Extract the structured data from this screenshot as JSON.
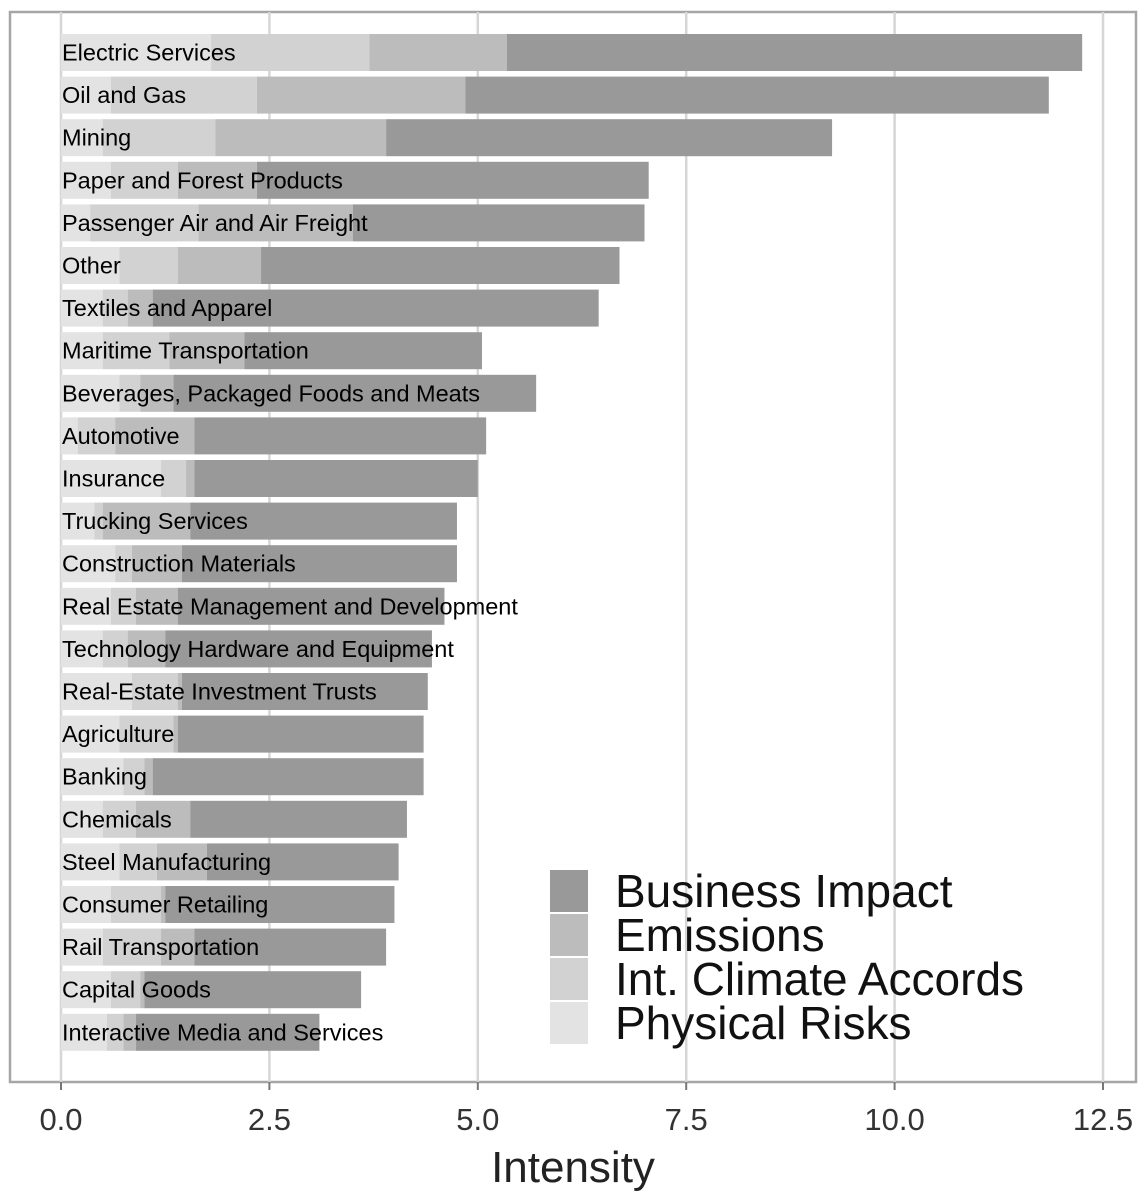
{
  "chart_data": {
    "type": "bar",
    "orientation": "horizontal",
    "stacked": true,
    "xlabel": "Intensity",
    "xlim": [
      0,
      12.5
    ],
    "xticks": [
      0,
      2.5,
      5,
      7.5,
      10,
      12.5
    ],
    "xtick_labels": [
      "0.0",
      "2.5",
      "5.0",
      "7.5",
      "10.0",
      "12.5"
    ],
    "grid": "vertical",
    "legend_position": "bottom-right",
    "categories": [
      "Electric Services",
      "Oil and Gas",
      "Mining",
      "Paper and Forest Products",
      "Passenger Air and Air Freight",
      "Other",
      "Textiles and Apparel",
      "Maritime Transportation",
      "Beverages, Packaged Foods and Meats",
      "Automotive",
      "Insurance",
      "Trucking Services",
      "Construction Materials",
      "Real Estate Management and Development",
      "Technology Hardware and Equipment",
      "Real-Estate Investment Trusts",
      "Agriculture",
      "Banking",
      "Chemicals",
      "Steel Manufacturing",
      "Consumer Retailing",
      "Rail Transportation",
      "Capital Goods",
      "Interactive Media and Services"
    ],
    "series": [
      {
        "name": "Physical Risks",
        "color": "#e3e3e3",
        "values": [
          1.8,
          0.6,
          0.5,
          0.6,
          0.35,
          0.7,
          0.5,
          0.5,
          0.7,
          0.2,
          1.2,
          0.4,
          0.65,
          0.6,
          0.5,
          0.85,
          0.7,
          0.75,
          0.5,
          0.7,
          0.6,
          0.5,
          0.6,
          0.55
        ]
      },
      {
        "name": "Int. Climate Accords",
        "color": "#d2d2d2",
        "values": [
          1.9,
          1.75,
          1.35,
          0.8,
          1.3,
          0.7,
          0.3,
          0.8,
          0.25,
          0.45,
          0.3,
          0.1,
          0.2,
          0.3,
          0.3,
          0.55,
          0.65,
          0.25,
          0.4,
          0.45,
          0.6,
          0.7,
          0.35,
          0.2
        ]
      },
      {
        "name": "Emissions",
        "color": "#bcbcbc",
        "values": [
          1.65,
          2.5,
          2.05,
          0.95,
          1.85,
          1.0,
          0.3,
          0.9,
          0.4,
          0.95,
          0.1,
          1.05,
          0.6,
          0.5,
          0.45,
          0.05,
          0.05,
          0.1,
          0.65,
          0.6,
          0.05,
          0.4,
          0.05,
          0.15
        ]
      },
      {
        "name": "Business Impact",
        "color": "#999999",
        "values": [
          6.9,
          7.0,
          5.35,
          4.7,
          3.5,
          4.3,
          5.35,
          2.85,
          4.35,
          3.5,
          3.4,
          3.2,
          3.3,
          3.2,
          3.2,
          2.95,
          2.95,
          3.25,
          2.6,
          2.3,
          2.75,
          2.3,
          2.6,
          2.2
        ]
      }
    ],
    "legend_order": [
      "Business Impact",
      "Emissions",
      "Int. Climate Accords",
      "Physical Risks"
    ]
  }
}
